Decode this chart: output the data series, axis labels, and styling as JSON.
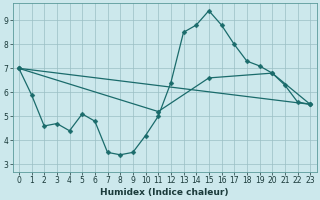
{
  "xlabel": "Humidex (Indice chaleur)",
  "bg_color": "#cce8ec",
  "grid_color": "#9bbfc4",
  "line_color": "#1a6b6b",
  "xlim": [
    -0.5,
    23.5
  ],
  "ylim": [
    2.7,
    9.7
  ],
  "yticks": [
    3,
    4,
    5,
    6,
    7,
    8,
    9
  ],
  "xticks": [
    0,
    1,
    2,
    3,
    4,
    5,
    6,
    7,
    8,
    9,
    10,
    11,
    12,
    13,
    14,
    15,
    16,
    17,
    18,
    19,
    20,
    21,
    22,
    23
  ],
  "series1_x": [
    0,
    1,
    2,
    3,
    4,
    5,
    6,
    7,
    8,
    9,
    10,
    11,
    12,
    13,
    14,
    15,
    16,
    17,
    18,
    19,
    20,
    21,
    22,
    23
  ],
  "series1_y": [
    7.0,
    5.9,
    4.6,
    4.7,
    4.4,
    5.1,
    4.8,
    3.5,
    3.4,
    3.5,
    4.2,
    5.0,
    6.4,
    8.5,
    8.8,
    9.4,
    8.8,
    8.0,
    7.3,
    7.1,
    6.8,
    6.3,
    5.6,
    5.5
  ],
  "series2_x": [
    0,
    23
  ],
  "series2_y": [
    7.0,
    5.5
  ],
  "series3_x": [
    0,
    11,
    15,
    20,
    23
  ],
  "series3_y": [
    7.0,
    5.2,
    6.6,
    6.8,
    5.5
  ],
  "marker_size": 2.5,
  "linewidth": 0.9,
  "tick_fontsize": 5.5,
  "xlabel_fontsize": 6.5
}
